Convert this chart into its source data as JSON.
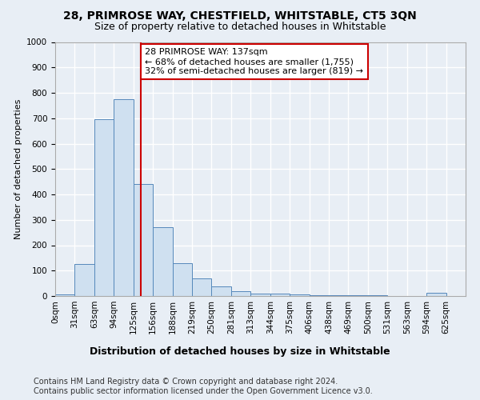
{
  "title1": "28, PRIMROSE WAY, CHESTFIELD, WHITSTABLE, CT5 3QN",
  "title2": "Size of property relative to detached houses in Whitstable",
  "xlabel": "Distribution of detached houses by size in Whitstable",
  "ylabel": "Number of detached properties",
  "bin_labels": [
    "0sqm",
    "31sqm",
    "63sqm",
    "94sqm",
    "125sqm",
    "156sqm",
    "188sqm",
    "219sqm",
    "250sqm",
    "281sqm",
    "313sqm",
    "344sqm",
    "375sqm",
    "406sqm",
    "438sqm",
    "469sqm",
    "500sqm",
    "531sqm",
    "563sqm",
    "594sqm",
    "625sqm"
  ],
  "bar_heights": [
    5,
    125,
    695,
    775,
    440,
    270,
    130,
    70,
    38,
    20,
    10,
    8,
    5,
    3,
    2,
    2,
    2,
    0,
    0,
    12,
    0
  ],
  "bar_color": "#cfe0f0",
  "bar_edge_color": "#5588bb",
  "annotation_text": "28 PRIMROSE WAY: 137sqm\n← 68% of detached houses are smaller (1,755)\n32% of semi-detached houses are larger (819) →",
  "annotation_box_color": "#ffffff",
  "annotation_box_edge": "#cc0000",
  "footer1": "Contains HM Land Registry data © Crown copyright and database right 2024.",
  "footer2": "Contains public sector information licensed under the Open Government Licence v3.0.",
  "ylim": [
    0,
    1000
  ],
  "yticks": [
    0,
    100,
    200,
    300,
    400,
    500,
    600,
    700,
    800,
    900,
    1000
  ],
  "bg_color": "#e8eef5",
  "grid_color": "#ffffff",
  "title1_fontsize": 10,
  "title2_fontsize": 9,
  "ylabel_fontsize": 8,
  "xlabel_fontsize": 9,
  "tick_fontsize": 7.5,
  "footer_fontsize": 7,
  "annot_fontsize": 8
}
